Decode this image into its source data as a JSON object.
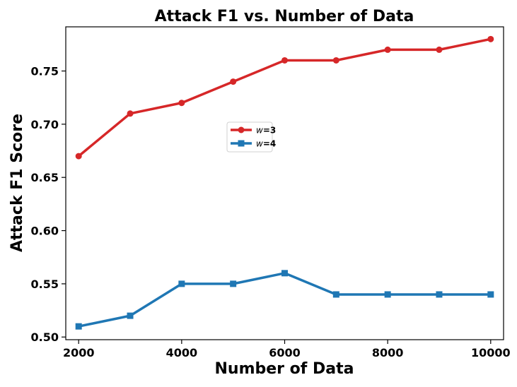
{
  "chart_data": {
    "type": "line",
    "title": "Attack F1 vs. Number of Data",
    "xlabel": "Number of Data",
    "ylabel": "Attack F1 Score",
    "x": [
      2000,
      3000,
      4000,
      5000,
      6000,
      7000,
      8000,
      9000,
      10000
    ],
    "xticks": [
      2000,
      4000,
      6000,
      8000,
      10000
    ],
    "yticks": [
      0.5,
      0.55,
      0.6,
      0.65,
      0.7,
      0.75
    ],
    "xlim": [
      1750,
      10250
    ],
    "ylim": [
      0.4975,
      0.7915
    ],
    "grid": false,
    "legend_position": "center-left",
    "series": [
      {
        "name": "w=3",
        "color": "#d62728",
        "marker": "circle",
        "values": [
          0.67,
          0.71,
          0.72,
          0.74,
          0.76,
          0.76,
          0.77,
          0.77,
          0.78
        ]
      },
      {
        "name": "w=4",
        "color": "#1f77b4",
        "marker": "square",
        "values": [
          0.51,
          0.52,
          0.55,
          0.55,
          0.56,
          0.54,
          0.54,
          0.54,
          0.54
        ]
      }
    ]
  }
}
